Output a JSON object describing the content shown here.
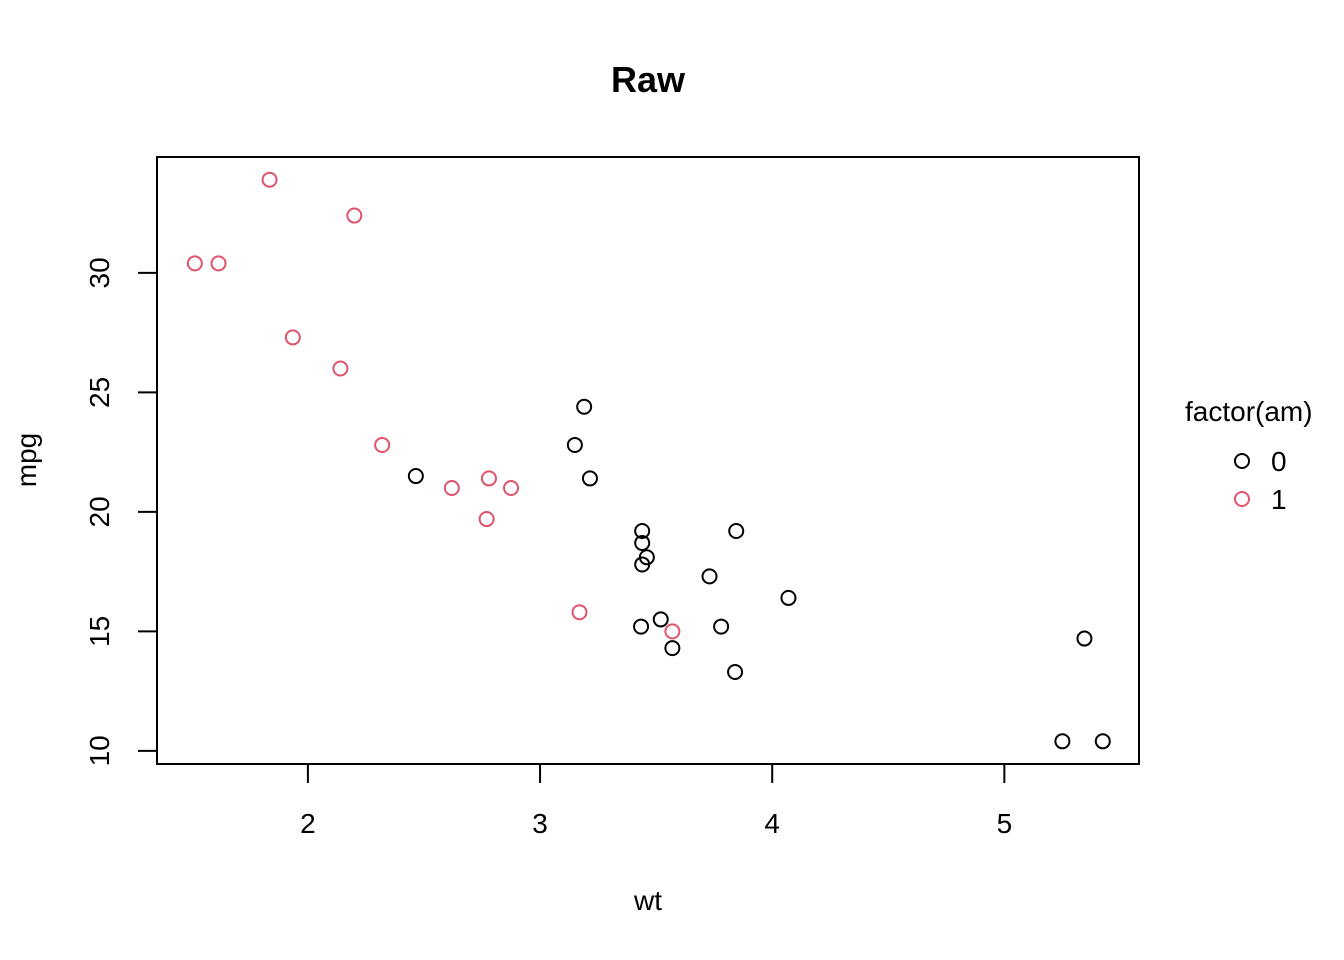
{
  "chart_data": {
    "type": "scatter",
    "title": "Raw",
    "xlabel": "wt",
    "ylabel": "mpg",
    "xlim": [
      1.35,
      5.58
    ],
    "ylim": [
      9.45,
      34.85
    ],
    "x_ticks": [
      2,
      3,
      4,
      5
    ],
    "y_ticks": [
      10,
      15,
      20,
      25,
      30
    ],
    "grid": false,
    "legend": {
      "title": "factor(am)",
      "position": "right"
    },
    "series": [
      {
        "name": "0",
        "color": "#000000",
        "points": [
          [
            3.215,
            21.4
          ],
          [
            3.44,
            18.7
          ],
          [
            3.46,
            18.1
          ],
          [
            3.57,
            14.3
          ],
          [
            3.19,
            24.4
          ],
          [
            3.15,
            22.8
          ],
          [
            3.44,
            19.2
          ],
          [
            3.44,
            17.8
          ],
          [
            4.07,
            16.4
          ],
          [
            3.73,
            17.3
          ],
          [
            3.78,
            15.2
          ],
          [
            5.25,
            10.4
          ],
          [
            5.424,
            10.4
          ],
          [
            5.345,
            14.7
          ],
          [
            2.465,
            21.5
          ],
          [
            3.52,
            15.5
          ],
          [
            3.435,
            15.2
          ],
          [
            3.84,
            13.3
          ],
          [
            3.845,
            19.2
          ]
        ]
      },
      {
        "name": "1",
        "color": "#DF536B",
        "points": [
          [
            2.62,
            21.0
          ],
          [
            2.875,
            21.0
          ],
          [
            2.32,
            22.8
          ],
          [
            2.2,
            32.4
          ],
          [
            1.615,
            30.4
          ],
          [
            1.835,
            33.9
          ],
          [
            1.935,
            27.3
          ],
          [
            2.14,
            26.0
          ],
          [
            1.513,
            30.4
          ],
          [
            3.17,
            15.8
          ],
          [
            2.77,
            19.7
          ],
          [
            3.57,
            15.0
          ],
          [
            2.78,
            21.4
          ]
        ]
      }
    ]
  }
}
